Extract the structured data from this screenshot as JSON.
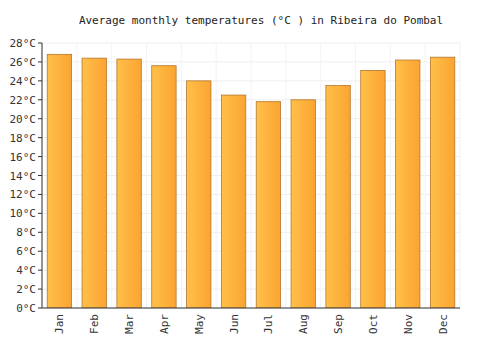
{
  "chart_data": {
    "type": "bar",
    "title": "Average monthly temperatures (°C ) in Ribeira do Pombal",
    "categories": [
      "Jan",
      "Feb",
      "Mar",
      "Apr",
      "May",
      "Jun",
      "Jul",
      "Aug",
      "Sep",
      "Oct",
      "Nov",
      "Dec"
    ],
    "values": [
      26.8,
      26.4,
      26.3,
      25.6,
      24.0,
      22.5,
      21.8,
      22.0,
      23.5,
      25.1,
      26.2,
      26.5
    ],
    "color": "#fba431",
    "ylim": [
      0,
      28
    ],
    "yticks": [
      {
        "value": 0,
        "label": "0°C"
      },
      {
        "value": 2,
        "label": "2°C"
      },
      {
        "value": 4,
        "label": "4°C"
      },
      {
        "value": 6,
        "label": "6°C"
      },
      {
        "value": 8,
        "label": "8°C"
      },
      {
        "value": 10,
        "label": "10°C"
      },
      {
        "value": 12,
        "label": "12°C"
      },
      {
        "value": 14,
        "label": "14°C"
      },
      {
        "value": 16,
        "label": "16°C"
      },
      {
        "value": 18,
        "label": "18°C"
      },
      {
        "value": 20,
        "label": "20°C"
      },
      {
        "value": 22,
        "label": "22°C"
      },
      {
        "value": 24,
        "label": "24°C"
      },
      {
        "value": 26,
        "label": "26°C"
      },
      {
        "value": 28,
        "label": "28°C"
      }
    ],
    "grid": true
  }
}
